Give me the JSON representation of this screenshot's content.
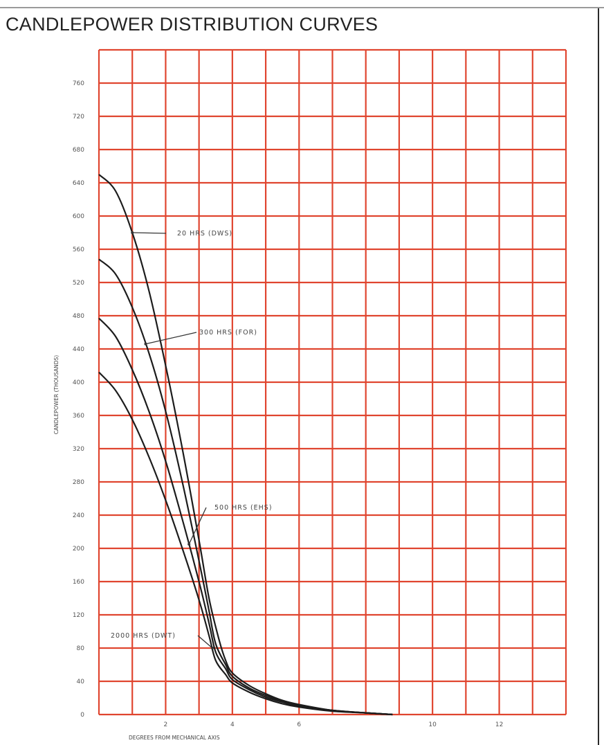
{
  "title": "CANDLEPOWER DISTRIBUTION CURVES",
  "colors": {
    "grid": "#e0452f",
    "curve": "#1c1c1c",
    "text": "#222222"
  },
  "chart_data": {
    "type": "line",
    "title": "CANDLEPOWER DISTRIBUTION CURVES",
    "xlabel": "DEGREES FROM MECHANICAL AXIS",
    "ylabel": "CANDLEPOWER (THOUSANDS)",
    "xlim": [
      0,
      14
    ],
    "ylim": [
      0,
      800
    ],
    "x_ticks": [
      2,
      4,
      6,
      10,
      12
    ],
    "y_ticks": [
      0,
      40,
      80,
      120,
      160,
      200,
      240,
      280,
      320,
      360,
      400,
      440,
      480,
      520,
      560,
      600,
      640,
      680,
      720,
      760
    ],
    "x_tick_labels": [
      "2",
      "4",
      "6",
      "10",
      "12"
    ],
    "y_tick_labels": [
      "0",
      "40",
      "80",
      "120",
      "160",
      "200",
      "240",
      "280",
      "320",
      "360",
      "400",
      "440",
      "480",
      "520",
      "560",
      "600",
      "640",
      "680",
      "720",
      "760"
    ],
    "grid": true,
    "series": [
      {
        "name": "20 HRS (DWS)",
        "x": [
          0,
          0.5,
          1.0,
          1.5,
          2.0,
          2.5,
          3.0,
          3.3,
          3.6,
          3.8,
          4.0,
          4.5,
          5.0,
          5.5,
          6.0,
          7.0,
          8.0,
          8.8
        ],
        "y": [
          650,
          630,
          580,
          510,
          420,
          320,
          210,
          140,
          90,
          65,
          50,
          35,
          25,
          17,
          12,
          5,
          2,
          0
        ]
      },
      {
        "name": "300 HRS (FOR)",
        "x": [
          0,
          0.5,
          1.0,
          1.5,
          2.0,
          2.5,
          3.0,
          3.3,
          3.5,
          3.8,
          4.0,
          4.5,
          5.0,
          5.5,
          6.0,
          7.0,
          8.0,
          8.8
        ],
        "y": [
          548,
          530,
          490,
          435,
          365,
          280,
          185,
          125,
          85,
          60,
          46,
          32,
          23,
          16,
          11,
          5,
          2,
          0
        ]
      },
      {
        "name": "500 HRS (EHS)",
        "x": [
          0,
          0.5,
          1.0,
          1.5,
          2.0,
          2.5,
          3.0,
          3.3,
          3.5,
          3.8,
          4.0,
          4.5,
          5.0,
          5.5,
          6.0,
          7.0,
          8.0,
          8.8
        ],
        "y": [
          477,
          455,
          415,
          365,
          305,
          235,
          160,
          110,
          75,
          55,
          42,
          30,
          21,
          15,
          10,
          5,
          2,
          0
        ]
      },
      {
        "name": "2000 HRS (DWT)",
        "x": [
          0,
          0.5,
          1.0,
          1.5,
          2.0,
          2.5,
          3.0,
          3.3,
          3.5,
          3.8,
          4.0,
          4.5,
          5.0,
          5.5,
          6.0,
          7.0,
          8.0,
          8.8
        ],
        "y": [
          412,
          390,
          355,
          310,
          258,
          200,
          138,
          95,
          65,
          48,
          38,
          27,
          19,
          13,
          9,
          4,
          2,
          0
        ]
      }
    ],
    "annotations": [
      {
        "text": "20 HRS (DWS)",
        "series": 0,
        "at_x": 1.0
      },
      {
        "text": "300 HRS (FOR)",
        "series": 1,
        "at_x": 1.4
      },
      {
        "text": "500 HRS (EHS)",
        "series": 2,
        "at_x": 2.7
      },
      {
        "text": "2000 HRS (DWT)",
        "series": 3,
        "at_x": 3.4
      }
    ]
  }
}
